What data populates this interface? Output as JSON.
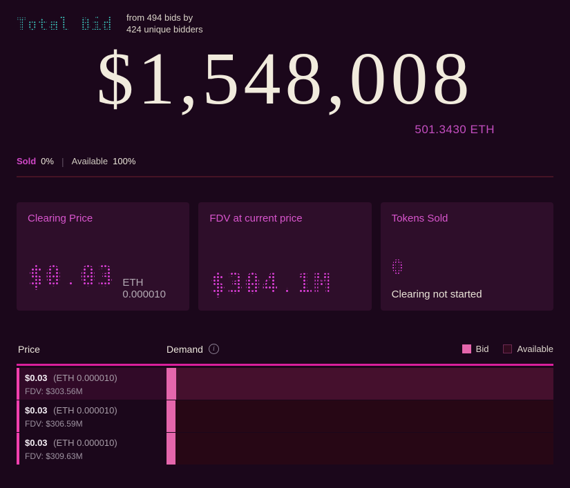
{
  "header": {
    "title": "Total Bid",
    "subtitle": "from 494 bids by 424 unique bidders",
    "total_usd": "$1,548,008",
    "total_eth": "501.3430 ETH",
    "sold_label": "Sold",
    "sold_value": "0%",
    "separator": "|",
    "available_label": "Available",
    "available_value": "100%"
  },
  "cards": [
    {
      "title": "Clearing Price",
      "value": "$0.03",
      "suffix": "ETH 0.000010"
    },
    {
      "title": "FDV at current price",
      "value": "$304.1M",
      "suffix": ""
    },
    {
      "title": "Tokens Sold",
      "value": "0",
      "note": "Clearing not started"
    }
  ],
  "table": {
    "price_header": "Price",
    "demand_header": "Demand",
    "info_glyph": "i",
    "legend_bid": "Bid",
    "legend_available": "Available",
    "rows": [
      {
        "price": "$0.03",
        "eth": "(ETH 0.000010)",
        "fdv": "FDV: $303.56M",
        "demand_pct": 2.5
      },
      {
        "price": "$0.03",
        "eth": "(ETH 0.000010)",
        "fdv": "FDV: $306.59M",
        "demand_pct": 2.3
      },
      {
        "price": "$0.03",
        "eth": "(ETH 0.000010)",
        "fdv": "FDV: $309.63M",
        "demand_pct": 2.3
      }
    ]
  },
  "colors": {
    "bg": "#1b071b",
    "card-bg": "#2e0e2a",
    "magenta": "#d855cd",
    "magenta-bright": "#d83fd4",
    "cyan": "#3fd8cc",
    "cream": "#ece6da",
    "pink": "#e566ac",
    "header-line": "#da1f9c",
    "track": "#270715",
    "track-hl": "#45102d",
    "row-hl": "#310a28",
    "divider": "#461325",
    "accent": "#f23fae"
  }
}
